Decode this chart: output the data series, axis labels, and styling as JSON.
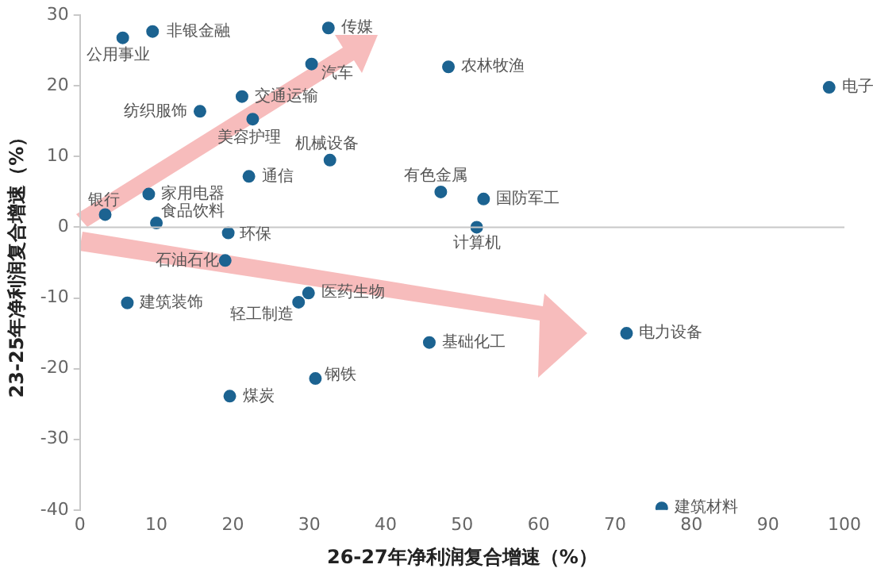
{
  "chart_data": {
    "type": "scatter",
    "xlabel": "26-27年净利润复合增速（%）",
    "ylabel": "23-25年净利润复合增速（%）",
    "x": [
      5.6,
      9.5,
      32.5,
      30.3,
      48.2,
      98.0,
      21.2,
      15.7,
      22.6,
      32.7,
      22.1,
      47.2,
      52.8,
      9.0,
      3.3,
      10.0,
      51.9,
      19.4,
      19.0,
      6.2,
      28.6,
      29.9,
      45.7,
      71.5,
      30.8,
      19.6,
      76.1
    ],
    "series": [
      {
        "color": "#1c6391",
        "values": [
          26.8,
          27.7,
          28.2,
          23.1,
          22.7,
          19.8,
          18.5,
          16.4,
          15.3,
          9.5,
          7.2,
          5.0,
          4.0,
          4.7,
          1.8,
          0.6,
          0.0,
          -0.8,
          -4.7,
          -10.7,
          -10.6,
          -9.3,
          -16.3,
          -15.0,
          -21.4,
          -23.9,
          -39.7
        ]
      }
    ],
    "annotations": [
      {
        "text": "公用事业",
        "x": 5.6,
        "y": 26.8
      },
      {
        "text": "非银金融",
        "x": 9.5,
        "y": 27.7
      },
      {
        "text": "传媒",
        "x": 32.5,
        "y": 28.2
      },
      {
        "text": "汽车",
        "x": 30.3,
        "y": 23.1
      },
      {
        "text": "农林牧渔",
        "x": 48.2,
        "y": 22.7
      },
      {
        "text": "电子",
        "x": 98.0,
        "y": 19.8
      },
      {
        "text": "交通运输",
        "x": 21.2,
        "y": 18.5
      },
      {
        "text": "纺织服饰",
        "x": 15.7,
        "y": 16.4
      },
      {
        "text": "美容护理",
        "x": 22.6,
        "y": 15.3
      },
      {
        "text": "机械设备",
        "x": 32.7,
        "y": 9.5
      },
      {
        "text": "通信",
        "x": 22.1,
        "y": 7.2
      },
      {
        "text": "有色金属",
        "x": 47.2,
        "y": 5.0
      },
      {
        "text": "国防军工",
        "x": 52.8,
        "y": 4.0
      },
      {
        "text": "家用电器",
        "x": 9.0,
        "y": 4.7
      },
      {
        "text": "银行",
        "x": 3.3,
        "y": 1.8
      },
      {
        "text": "食品饮料",
        "x": 10.0,
        "y": 0.6
      },
      {
        "text": "计算机",
        "x": 51.9,
        "y": 0.0
      },
      {
        "text": "环保",
        "x": 19.4,
        "y": -0.8
      },
      {
        "text": "石油石化",
        "x": 19.0,
        "y": -4.7
      },
      {
        "text": "建筑装饰",
        "x": 6.2,
        "y": -10.7
      },
      {
        "text": "轻工制造",
        "x": 28.6,
        "y": -10.6
      },
      {
        "text": "医药生物",
        "x": 29.9,
        "y": -9.3
      },
      {
        "text": "基础化工",
        "x": 45.7,
        "y": -16.3
      },
      {
        "text": "电力设备",
        "x": 71.5,
        "y": -15.0
      },
      {
        "text": "钢铁",
        "x": 30.8,
        "y": -21.4
      },
      {
        "text": "煤炭",
        "x": 19.6,
        "y": -23.9
      },
      {
        "text": "建筑材料",
        "x": 76.1,
        "y": -39.7
      }
    ],
    "xlim": [
      0,
      100
    ],
    "xticks": [
      0,
      10,
      20,
      30,
      40,
      50,
      60,
      70,
      80,
      90,
      100
    ],
    "ylim": [
      -40,
      30
    ],
    "yticks": [
      -40,
      -30,
      -20,
      -10,
      0,
      10,
      20,
      30
    ],
    "ref_lines": [
      {
        "axis": "y",
        "value": 0,
        "color": "#c8c8c8"
      }
    ],
    "grid": false,
    "legend": false,
    "marker": "circle"
  }
}
